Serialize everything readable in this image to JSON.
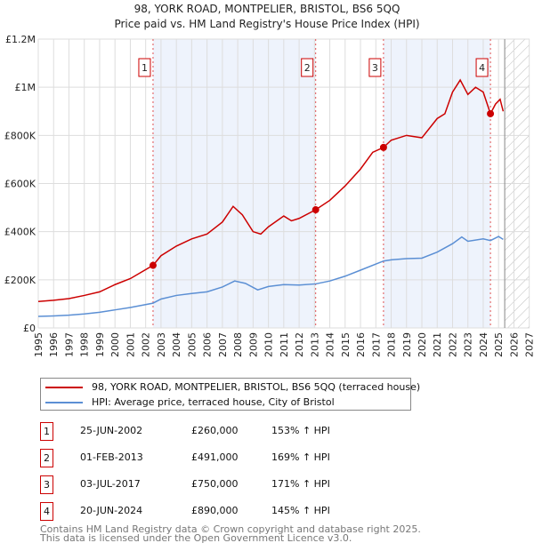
{
  "chart_data": {
    "type": "line",
    "title": "98, YORK ROAD, MONTPELIER, BRISTOL, BS6 5QQ",
    "subtitle": "Price paid vs. HM Land Registry's House Price Index (HPI)",
    "xlim": [
      1995,
      2027
    ],
    "ylim": [
      0,
      1200000
    ],
    "x_ticks": [
      "1995",
      "1996",
      "1997",
      "1998",
      "1999",
      "2000",
      "2001",
      "2002",
      "2003",
      "2004",
      "2005",
      "2006",
      "2007",
      "2008",
      "2009",
      "2010",
      "2011",
      "2012",
      "2013",
      "2014",
      "2015",
      "2016",
      "2017",
      "2018",
      "2019",
      "2020",
      "2021",
      "2022",
      "2023",
      "2024",
      "2025",
      "2026",
      "2027"
    ],
    "y_ticks": [
      {
        "v": 0,
        "label": "£0"
      },
      {
        "v": 200000,
        "label": "£200K"
      },
      {
        "v": 400000,
        "label": "£400K"
      },
      {
        "v": 600000,
        "label": "£600K"
      },
      {
        "v": 800000,
        "label": "£800K"
      },
      {
        "v": 1000000,
        "label": "£1M"
      },
      {
        "v": 1200000,
        "label": "£1.2M"
      }
    ],
    "grid": true,
    "future_hatch_from": 2025.4,
    "shaded_ranges": [
      [
        2002.48,
        2013.08
      ],
      [
        2017.5,
        2024.47
      ]
    ],
    "series": [
      {
        "name": "98, YORK ROAD, MONTPELIER, BRISTOL, BS6 5QQ (terraced house)",
        "color": "#cc0000",
        "points": [
          [
            1995,
            110000
          ],
          [
            1996,
            115000
          ],
          [
            1997,
            122000
          ],
          [
            1998,
            135000
          ],
          [
            1999,
            150000
          ],
          [
            2000,
            180000
          ],
          [
            2001,
            205000
          ],
          [
            2002.48,
            260000
          ],
          [
            2003,
            300000
          ],
          [
            2004,
            340000
          ],
          [
            2005,
            370000
          ],
          [
            2006,
            390000
          ],
          [
            2007,
            440000
          ],
          [
            2007.7,
            505000
          ],
          [
            2008.3,
            470000
          ],
          [
            2009,
            400000
          ],
          [
            2009.5,
            390000
          ],
          [
            2010,
            420000
          ],
          [
            2011,
            465000
          ],
          [
            2011.5,
            445000
          ],
          [
            2012,
            455000
          ],
          [
            2013.08,
            491000
          ],
          [
            2014,
            530000
          ],
          [
            2015,
            590000
          ],
          [
            2016,
            660000
          ],
          [
            2016.8,
            730000
          ],
          [
            2017.5,
            750000
          ],
          [
            2018,
            780000
          ],
          [
            2019,
            800000
          ],
          [
            2020,
            790000
          ],
          [
            2021,
            870000
          ],
          [
            2021.5,
            890000
          ],
          [
            2022,
            980000
          ],
          [
            2022.5,
            1030000
          ],
          [
            2023,
            970000
          ],
          [
            2023.5,
            1000000
          ],
          [
            2024,
            980000
          ],
          [
            2024.47,
            890000
          ],
          [
            2024.8,
            930000
          ],
          [
            2025.1,
            950000
          ],
          [
            2025.3,
            900000
          ]
        ]
      },
      {
        "name": "HPI: Average price, terraced house, City of Bristol",
        "color": "#5b8fd4",
        "points": [
          [
            1995,
            48000
          ],
          [
            1996,
            50000
          ],
          [
            1997,
            53000
          ],
          [
            1998,
            58000
          ],
          [
            1999,
            65000
          ],
          [
            2000,
            75000
          ],
          [
            2001,
            85000
          ],
          [
            2002.48,
            103000
          ],
          [
            2003,
            120000
          ],
          [
            2004,
            135000
          ],
          [
            2005,
            143000
          ],
          [
            2006,
            150000
          ],
          [
            2007,
            170000
          ],
          [
            2007.8,
            195000
          ],
          [
            2008.5,
            185000
          ],
          [
            2009.3,
            158000
          ],
          [
            2010,
            172000
          ],
          [
            2011,
            180000
          ],
          [
            2012,
            178000
          ],
          [
            2013.08,
            183000
          ],
          [
            2014,
            195000
          ],
          [
            2015,
            215000
          ],
          [
            2016,
            240000
          ],
          [
            2017.5,
            278000
          ],
          [
            2018,
            283000
          ],
          [
            2019,
            288000
          ],
          [
            2020,
            290000
          ],
          [
            2021,
            315000
          ],
          [
            2022,
            350000
          ],
          [
            2022.6,
            378000
          ],
          [
            2023,
            360000
          ],
          [
            2024,
            370000
          ],
          [
            2024.47,
            363000
          ],
          [
            2025,
            380000
          ],
          [
            2025.3,
            368000
          ]
        ]
      }
    ],
    "sales": [
      {
        "n": "1",
        "x": 2002.48,
        "date": "25-JUN-2002",
        "price": "£260,000",
        "value": 260000,
        "hpi": "153% ↑ HPI"
      },
      {
        "n": "2",
        "x": 2013.08,
        "date": "01-FEB-2013",
        "price": "£491,000",
        "value": 491000,
        "hpi": "169% ↑ HPI"
      },
      {
        "n": "3",
        "x": 2017.5,
        "date": "03-JUL-2017",
        "price": "£750,000",
        "value": 750000,
        "hpi": "171% ↑ HPI"
      },
      {
        "n": "4",
        "x": 2024.47,
        "date": "20-JUN-2024",
        "price": "£890,000",
        "value": 890000,
        "hpi": "145% ↑ HPI"
      }
    ]
  },
  "footer": {
    "line1": "Contains HM Land Registry data © Crown copyright and database right 2025.",
    "line2": "This data is licensed under the Open Government Licence v3.0."
  }
}
